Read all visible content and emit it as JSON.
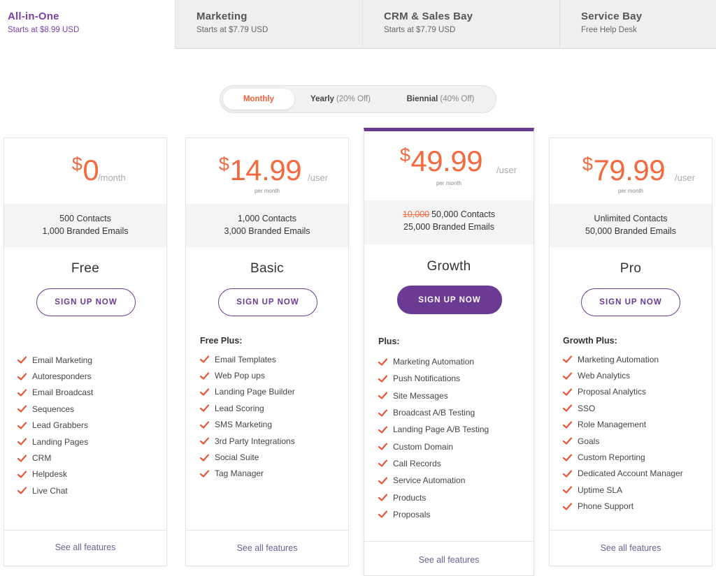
{
  "tabs": [
    {
      "title": "All-in-One",
      "sub": "Starts at $8.99 USD"
    },
    {
      "title": "Marketing",
      "sub": "Starts at $7.79 USD"
    },
    {
      "title": "CRM & Sales Bay",
      "sub": "Starts at $7.79 USD"
    },
    {
      "title": "Service Bay",
      "sub": "Free Help Desk"
    }
  ],
  "billing": {
    "monthly": "Monthly",
    "yearly": "Yearly",
    "yearly_discount": "(20% Off)",
    "biennial": "Biennial",
    "biennial_discount": "(40% Off)",
    "selected": "Monthly"
  },
  "colors": {
    "accent": "#6b3a93",
    "price": "#f26a3f",
    "check": "#e8573a"
  },
  "plans": [
    {
      "currency": "$",
      "amount": "0",
      "unit": "/month",
      "per": "",
      "contacts": "500 Contacts",
      "emails": "1,000 Branded Emails",
      "old_contacts": "",
      "name": "Free",
      "cta": "SIGN UP NOW",
      "plus": "",
      "features": [
        "Email Marketing",
        "Autoresponders",
        "Email Broadcast",
        "Sequences",
        "Lead Grabbers",
        "Landing Pages",
        "CRM",
        "Helpdesk",
        "Live Chat"
      ],
      "see_all": "See all features"
    },
    {
      "currency": "$",
      "amount": "14.99",
      "unit": "/user",
      "per": "per month",
      "contacts": "1,000 Contacts",
      "emails": "3,000 Branded Emails",
      "old_contacts": "",
      "name": "Basic",
      "cta": "SIGN UP NOW",
      "plus": "Free Plus:",
      "features": [
        "Email Templates",
        "Web Pop ups",
        "Landing Page Builder",
        "Lead Scoring",
        "SMS Marketing",
        "3rd Party Integrations",
        "Social Suite",
        "Tag Manager"
      ],
      "see_all": "See all features"
    },
    {
      "currency": "$",
      "amount": "49.99",
      "unit": "/user",
      "per": "per month",
      "contacts": "50,000 Contacts",
      "emails": "25,000 Branded Emails",
      "old_contacts": "10,000",
      "name": "Growth",
      "cta": "SIGN UP NOW",
      "plus": "Plus:",
      "features": [
        "Marketing Automation",
        "Push Notifications",
        "Site Messages",
        "Broadcast A/B Testing",
        "Landing Page A/B Testing",
        "Custom Domain",
        "Call Records",
        "Service Automation",
        "Products",
        "Proposals"
      ],
      "see_all": "See all features"
    },
    {
      "currency": "$",
      "amount": "79.99",
      "unit": "/user",
      "per": "per month",
      "contacts": "Unlimited Contacts",
      "emails": "50,000 Branded Emails",
      "old_contacts": "",
      "name": "Pro",
      "cta": "SIGN UP NOW",
      "plus": "Growth Plus:",
      "features": [
        "Marketing Automation",
        "Web Analytics",
        "Proposal Analytics",
        "SSO",
        "Role Management",
        "Goals",
        "Custom Reporting",
        "Dedicated Account Manager",
        "Uptime SLA",
        "Phone Support"
      ],
      "see_all": "See all features"
    }
  ]
}
